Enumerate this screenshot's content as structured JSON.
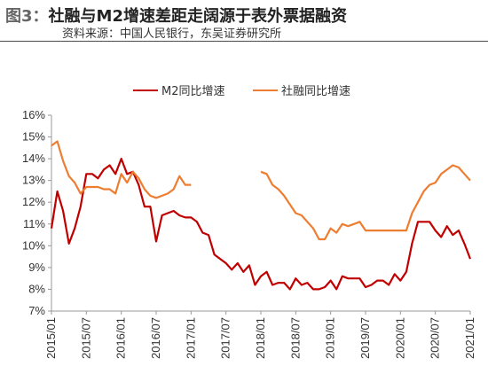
{
  "header": {
    "figure_label": "图3：",
    "title": "社融与M2增速差距走阔源于表外票据融资",
    "source": "资料来源：中国人民银行，东吴证券研究所"
  },
  "colors": {
    "m2": "#c00000",
    "sf": "#ed7d31",
    "axis": "#999999",
    "text": "#333333"
  },
  "chart_data": {
    "type": "line",
    "title": "社融与M2增速差距走阔源于表外票据融资",
    "y_ticks": [
      "16%",
      "15%",
      "14%",
      "13%",
      "12%",
      "11%",
      "10%",
      "9%",
      "8%",
      "7%"
    ],
    "ylim": [
      7,
      16
    ],
    "x_ticks": [
      "2015/01",
      "2015/07",
      "2016/01",
      "2016/07",
      "2017/01",
      "2017/07",
      "2018/01",
      "2018/07",
      "2019/01",
      "2019/07",
      "2020/01",
      "2020/07",
      "2021/01"
    ],
    "x_range": [
      "2015/01",
      "2021/01"
    ],
    "legend_position": "top",
    "series": [
      {
        "name": "M2同比增速",
        "color": "#c00000",
        "x": [
          "2015/01",
          "2015/02",
          "2015/03",
          "2015/04",
          "2015/05",
          "2015/06",
          "2015/07",
          "2015/08",
          "2015/09",
          "2015/10",
          "2015/11",
          "2015/12",
          "2016/01",
          "2016/02",
          "2016/03",
          "2016/04",
          "2016/05",
          "2016/06",
          "2016/07",
          "2016/08",
          "2016/09",
          "2016/10",
          "2016/11",
          "2016/12",
          "2017/01",
          "2017/02",
          "2017/03",
          "2017/04",
          "2017/05",
          "2017/06",
          "2017/07",
          "2017/08",
          "2017/09",
          "2017/10",
          "2017/11",
          "2017/12",
          "2018/01",
          "2018/02",
          "2018/03",
          "2018/04",
          "2018/05",
          "2018/06",
          "2018/07",
          "2018/08",
          "2018/09",
          "2018/10",
          "2018/11",
          "2018/12",
          "2019/01",
          "2019/02",
          "2019/03",
          "2019/04",
          "2019/05",
          "2019/06",
          "2019/07",
          "2019/08",
          "2019/09",
          "2019/10",
          "2019/11",
          "2019/12",
          "2020/01",
          "2020/02",
          "2020/03",
          "2020/04",
          "2020/05",
          "2020/06",
          "2020/07",
          "2020/08",
          "2020/09",
          "2020/10",
          "2020/11",
          "2020/12",
          "2021/01"
        ],
        "values": [
          10.8,
          12.5,
          11.6,
          10.1,
          10.8,
          11.8,
          13.3,
          13.3,
          13.1,
          13.5,
          13.7,
          13.3,
          14.0,
          13.3,
          13.4,
          12.8,
          11.8,
          11.8,
          10.2,
          11.4,
          11.5,
          11.6,
          11.4,
          11.3,
          11.3,
          11.1,
          10.6,
          10.5,
          9.6,
          9.4,
          9.2,
          8.9,
          9.2,
          8.8,
          9.1,
          8.2,
          8.6,
          8.8,
          8.2,
          8.3,
          8.3,
          8.0,
          8.5,
          8.2,
          8.3,
          8.0,
          8.0,
          8.1,
          8.4,
          8.0,
          8.6,
          8.5,
          8.5,
          8.5,
          8.1,
          8.2,
          8.4,
          8.4,
          8.2,
          8.7,
          8.4,
          8.8,
          10.1,
          11.1,
          11.1,
          11.1,
          10.7,
          10.4,
          10.9,
          10.5,
          10.7,
          10.1,
          9.4
        ],
        "segment_starts": [
          "2015/01"
        ]
      },
      {
        "name": "社融同比增速",
        "color": "#ed7d31",
        "x": [
          "2015/01",
          "2015/02",
          "2015/03",
          "2015/04",
          "2015/05",
          "2015/06",
          "2015/07",
          "2015/08",
          "2015/09",
          "2015/10",
          "2015/11",
          "2015/12",
          "2016/01",
          "2016/02",
          "2016/03",
          "2016/04",
          "2016/05",
          "2016/06",
          "2016/07",
          "2016/08",
          "2016/09",
          "2016/10",
          "2016/11",
          "2016/12",
          "2017/01",
          "2018/01",
          "2018/02",
          "2018/03",
          "2018/04",
          "2018/05",
          "2018/06",
          "2018/07",
          "2018/08",
          "2018/09",
          "2018/10",
          "2018/11",
          "2018/12",
          "2019/01",
          "2019/02",
          "2019/03",
          "2019/04",
          "2019/05",
          "2019/06",
          "2019/07",
          "2019/08",
          "2019/09",
          "2019/10",
          "2019/11",
          "2019/12",
          "2020/01",
          "2020/02",
          "2020/03",
          "2020/04",
          "2020/05",
          "2020/06",
          "2020/07",
          "2020/08",
          "2020/09",
          "2020/10",
          "2020/11",
          "2020/12",
          "2021/01"
        ],
        "values": [
          14.6,
          14.8,
          13.9,
          13.2,
          12.9,
          12.4,
          12.7,
          12.7,
          12.7,
          12.6,
          12.6,
          12.4,
          13.3,
          12.9,
          13.4,
          13.1,
          12.6,
          12.3,
          12.2,
          12.3,
          12.4,
          12.6,
          13.2,
          12.8,
          12.8,
          13.4,
          13.3,
          12.8,
          12.6,
          12.3,
          11.9,
          11.5,
          11.4,
          11.1,
          10.8,
          10.3,
          10.3,
          10.8,
          10.6,
          11.0,
          10.9,
          11.0,
          11.1,
          10.7,
          10.7,
          10.7,
          10.7,
          10.7,
          10.7,
          10.7,
          10.7,
          11.5,
          12.0,
          12.5,
          12.8,
          12.9,
          13.3,
          13.5,
          13.7,
          13.6,
          13.3,
          13.0
        ],
        "segment_starts": [
          "2015/01",
          "2018/01"
        ]
      }
    ]
  }
}
